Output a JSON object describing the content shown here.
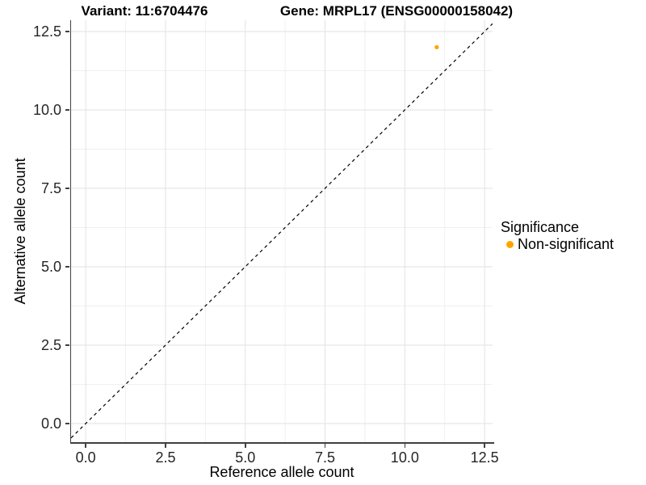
{
  "header": {
    "variant_title": "Variant: 11:6704476",
    "gene_title": "Gene: MRPL17 (ENSG00000158042)"
  },
  "chart_data": {
    "type": "scatter",
    "title": "Variant: 11:6704476 | Gene: MRPL17 (ENSG00000158042)",
    "xlabel": "Reference allele count",
    "ylabel": "Alternative allele count",
    "xlim": [
      -0.46,
      12.75
    ],
    "ylim": [
      -0.62,
      12.86
    ],
    "x_ticks": [
      {
        "value": 0,
        "label": "0.0"
      },
      {
        "value": 2.5,
        "label": "2.5"
      },
      {
        "value": 5,
        "label": "5.0"
      },
      {
        "value": 7.5,
        "label": "7.5"
      },
      {
        "value": 10,
        "label": "10.0"
      },
      {
        "value": 12.5,
        "label": "12.5"
      }
    ],
    "y_ticks": [
      {
        "value": 0,
        "label": "0.0"
      },
      {
        "value": 2.5,
        "label": "2.5"
      },
      {
        "value": 5,
        "label": "5.0"
      },
      {
        "value": 7.5,
        "label": "7.5"
      },
      {
        "value": 10,
        "label": "10.0"
      },
      {
        "value": 12.5,
        "label": "12.5"
      }
    ],
    "grid": "major+minor",
    "legend_position": "right",
    "series": [
      {
        "name": "Non-significant",
        "color": "#FFA500",
        "points": [
          {
            "x": 11,
            "y": 12
          }
        ]
      }
    ],
    "reference_line": {
      "type": "identity y=x",
      "style": "dashed",
      "color": "#000000"
    }
  },
  "legend": {
    "title": "Significance",
    "items": [
      {
        "label": "Non-significant",
        "color": "#FFA500"
      }
    ]
  },
  "colors": {
    "background": "#FFFFFF",
    "grid_major": "#E2E2E2",
    "grid_minor": "#F0F0F0",
    "axis_line": "#404040",
    "tick_label": "#262626",
    "title_text": "#000000",
    "point_non_significant": "#FFA500"
  }
}
